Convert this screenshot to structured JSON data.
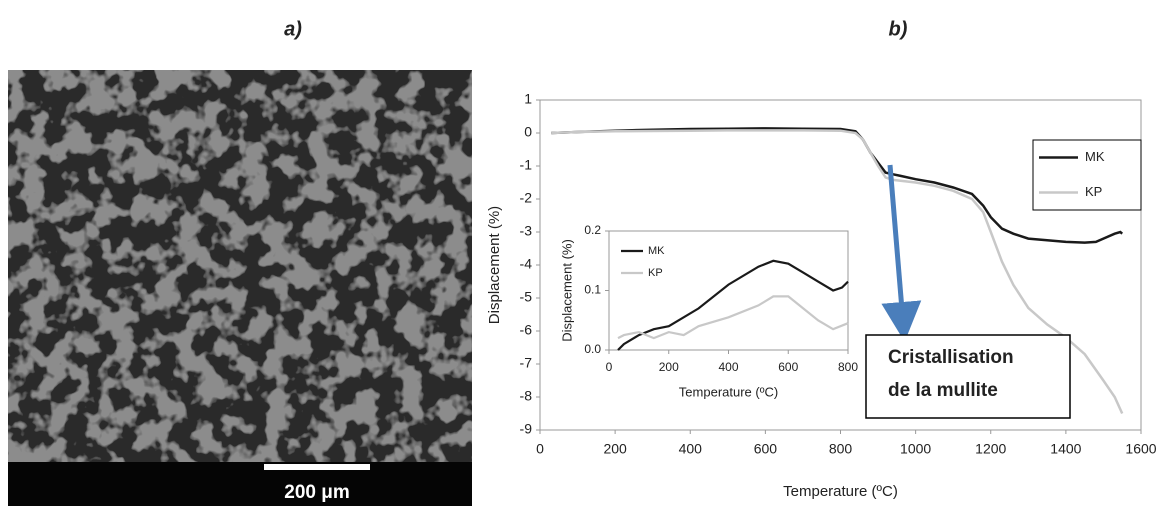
{
  "panels": [
    "a)",
    "b)"
  ],
  "image": {
    "scale_label": "200 μm"
  },
  "chart_data": [
    {
      "type": "line",
      "xlabel": "Temperature (ºC)",
      "ylabel": "Displacement (%)",
      "xlim": [
        0,
        1600
      ],
      "xticks": [
        0,
        200,
        400,
        600,
        800,
        1000,
        1200,
        1400,
        1600
      ],
      "ylim": [
        -9,
        1
      ],
      "yticks": [
        1,
        0,
        -1,
        -2,
        -3,
        -4,
        -5,
        -6,
        -7,
        -8,
        -9
      ],
      "legend": "upper right",
      "annotation": [
        "Cristallisation",
        "de la mullite"
      ],
      "series": [
        {
          "name": "MK",
          "color": "#1a1a1a",
          "x": [
            30,
            100,
            200,
            300,
            400,
            500,
            600,
            700,
            800,
            840,
            860,
            880,
            900,
            920,
            940,
            960,
            1000,
            1050,
            1100,
            1150,
            1180,
            1200,
            1230,
            1260,
            1300,
            1350,
            1400,
            1450,
            1480,
            1500,
            1530,
            1545,
            1550
          ],
          "values": [
            0,
            0.03,
            0.07,
            0.1,
            0.12,
            0.13,
            0.14,
            0.13,
            0.12,
            0.05,
            -0.2,
            -0.6,
            -0.9,
            -1.2,
            -1.25,
            -1.3,
            -1.4,
            -1.5,
            -1.65,
            -1.85,
            -2.2,
            -2.55,
            -2.9,
            -3.05,
            -3.2,
            -3.25,
            -3.3,
            -3.32,
            -3.3,
            -3.2,
            -3.05,
            -3.0,
            -3.05
          ]
        },
        {
          "name": "KP",
          "color": "#c8c8c8",
          "x": [
            30,
            100,
            200,
            300,
            400,
            500,
            600,
            700,
            800,
            840,
            860,
            880,
            900,
            920,
            940,
            960,
            1000,
            1050,
            1100,
            1150,
            1180,
            1200,
            1230,
            1260,
            1300,
            1350,
            1400,
            1450,
            1500,
            1530,
            1550
          ],
          "values": [
            0,
            0.03,
            0.05,
            0.06,
            0.07,
            0.08,
            0.08,
            0.08,
            0.07,
            0.0,
            -0.2,
            -0.6,
            -1.0,
            -1.35,
            -1.42,
            -1.45,
            -1.5,
            -1.6,
            -1.75,
            -2.0,
            -2.4,
            -3.0,
            -3.9,
            -4.6,
            -5.3,
            -5.8,
            -6.2,
            -6.7,
            -7.5,
            -8.0,
            -8.5
          ]
        }
      ]
    },
    {
      "type": "line",
      "xlabel": "Temperature (ºC)",
      "ylabel": "Displacement (%)",
      "xlim": [
        0,
        800
      ],
      "xticks": [
        0,
        200,
        400,
        600,
        800
      ],
      "ylim": [
        0,
        0.2
      ],
      "yticks": [
        {
          "value": 0,
          "label": "0.0"
        },
        0.1,
        0.2
      ],
      "legend": "upper left",
      "series": [
        {
          "name": "MK",
          "color": "#1a1a1a",
          "x": [
            30,
            50,
            100,
            150,
            200,
            300,
            400,
            500,
            550,
            600,
            650,
            700,
            750,
            780,
            800
          ],
          "values": [
            0,
            0.01,
            0.025,
            0.035,
            0.04,
            0.07,
            0.11,
            0.14,
            0.15,
            0.145,
            0.13,
            0.115,
            0.1,
            0.105,
            0.115
          ]
        },
        {
          "name": "KP",
          "color": "#c8c8c8",
          "x": [
            30,
            50,
            100,
            150,
            200,
            250,
            300,
            400,
            500,
            550,
            600,
            650,
            700,
            750,
            800
          ],
          "values": [
            0.02,
            0.025,
            0.03,
            0.02,
            0.03,
            0.025,
            0.04,
            0.055,
            0.075,
            0.09,
            0.09,
            0.07,
            0.05,
            0.035,
            0.045
          ]
        }
      ]
    }
  ]
}
